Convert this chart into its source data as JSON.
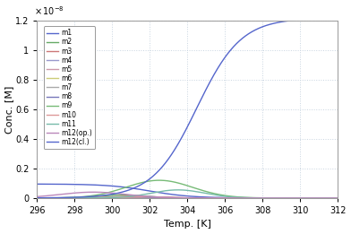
{
  "title": "",
  "xlabel": "Temp. [K]",
  "ylabel": "Conc. [M]",
  "x_min": 296,
  "x_max": 312,
  "y_min": 0,
  "y_max": 1.2e-08,
  "yticks": [
    0,
    2e-09,
    4e-09,
    6e-09,
    8e-09,
    1e-08,
    1.2e-08
  ],
  "ytick_labels": [
    "0",
    "0.2",
    "0.4",
    "0.6",
    "0.8",
    "1",
    "1.2"
  ],
  "xticks": [
    296,
    298,
    300,
    302,
    304,
    306,
    308,
    310,
    312
  ],
  "legend_labels": [
    "m1",
    "m2",
    "m3",
    "m4",
    "m5",
    "m6",
    "m7",
    "m8",
    "m9",
    "m10",
    "m11",
    "m12(op.)",
    "m12(cl.)"
  ],
  "line_colors": {
    "m1": "#5566cc",
    "m2": "#66aa66",
    "m3": "#cc7777",
    "m4": "#9999cc",
    "m5": "#cc99aa",
    "m6": "#cccc77",
    "m7": "#aaaaaa",
    "m8": "#7777bb",
    "m9": "#77bb77",
    "m10": "#dd9999",
    "m11": "#77bbaa",
    "m12op": "#bb88bb",
    "m12cl": "#5566cc"
  },
  "bg_color": "#ffffff",
  "grid_color": "#c8d4e0"
}
